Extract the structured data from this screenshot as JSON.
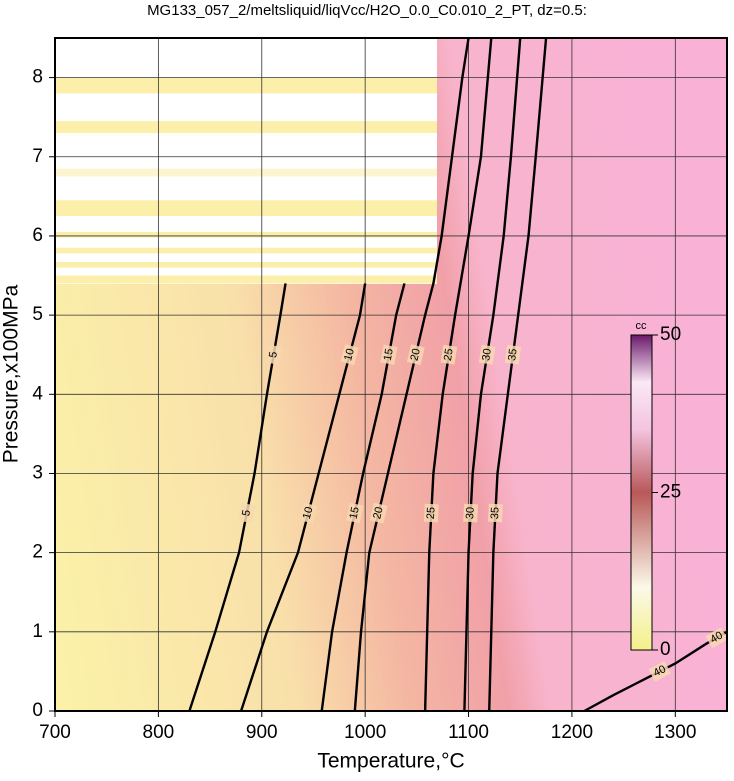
{
  "chart_data": {
    "type": "contour",
    "title": "MG133_057_2/meltsliquid/liqVcc/H2O_0.0_C0.010_2_PT, dz=0.5:",
    "x_label": "Temperature,°C",
    "y_label": "Pressure,x100MPa",
    "xlim": [
      700,
      1350
    ],
    "ylim": [
      0,
      8.5
    ],
    "xticks": [
      700,
      800,
      900,
      1000,
      1100,
      1200,
      1300
    ],
    "yticks": [
      0,
      1,
      2,
      3,
      4,
      5,
      6,
      7,
      8
    ],
    "grid": true,
    "contours": [
      {
        "level": 5,
        "x": [
          830,
          855,
          878,
          893,
          905,
          918,
          923
        ],
        "y": [
          0,
          1,
          2,
          3,
          4,
          5,
          5.4
        ]
      },
      {
        "level": 10,
        "x": [
          880,
          905,
          935,
          955,
          975,
          995,
          1000
        ],
        "y": [
          0,
          1,
          2,
          3,
          4,
          5,
          5.4
        ]
      },
      {
        "level": 15,
        "x": [
          958,
          968,
          982,
          998,
          1016,
          1030,
          1038
        ],
        "y": [
          0,
          1,
          2,
          3,
          4,
          5,
          5.4
        ]
      },
      {
        "level": 20,
        "x": [
          990,
          996,
          1004,
          1022,
          1040,
          1058,
          1066,
          1074,
          1084,
          1094,
          1100
        ],
        "y": [
          0,
          1,
          2,
          3,
          4,
          5,
          5.4,
          6,
          7,
          8,
          8.5
        ]
      },
      {
        "level": 25,
        "x": [
          1058,
          1060,
          1062,
          1066,
          1075,
          1087,
          1100,
          1112,
          1122
        ],
        "y": [
          0,
          1,
          2,
          3,
          4,
          5,
          6,
          7,
          8.5
        ]
      },
      {
        "level": 30,
        "x": [
          1096,
          1098,
          1100,
          1104,
          1112,
          1124,
          1134,
          1141,
          1150
        ],
        "y": [
          0,
          1,
          2,
          3,
          4,
          5,
          6,
          7,
          8.5
        ]
      },
      {
        "level": 35,
        "x": [
          1120,
          1122,
          1124,
          1128,
          1138,
          1148,
          1158,
          1165,
          1175
        ],
        "y": [
          0,
          1,
          2,
          3,
          4,
          5,
          6,
          7,
          8.5
        ]
      },
      {
        "level": 40,
        "x": [
          1212,
          1240,
          1270,
          1300,
          1330,
          1350
        ],
        "y": [
          0,
          0.2,
          0.4,
          0.6,
          0.85,
          1.0
        ]
      }
    ],
    "colorbar": {
      "label": "cc",
      "lim": [
        0,
        50
      ],
      "ticks": [
        0,
        25,
        50
      ]
    }
  }
}
